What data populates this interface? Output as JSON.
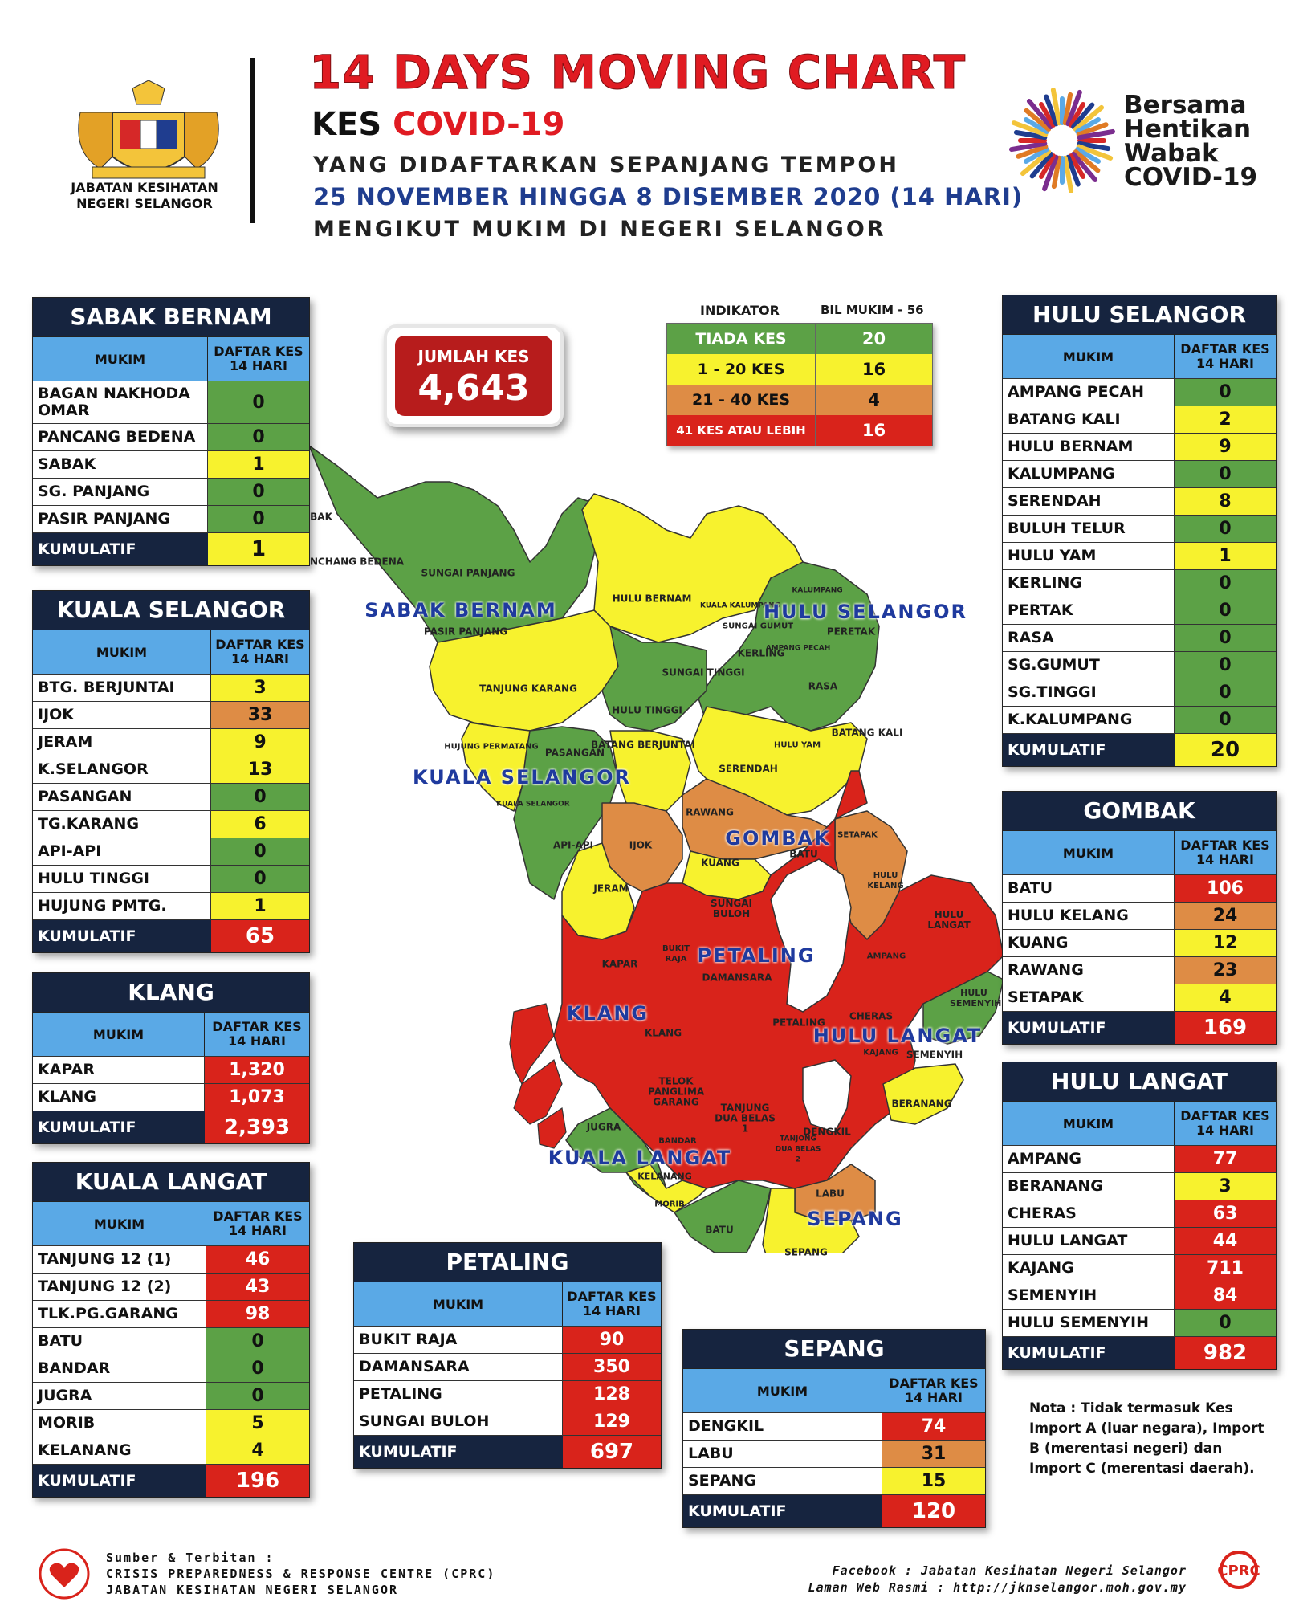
{
  "header": {
    "agency_line1": "JABATAN KESIHATAN",
    "agency_line2": "NEGERI SELANGOR",
    "title": "14 DAYS MOVING CHART",
    "kes_prefix": "KES",
    "kes_highlight": "COVID-19",
    "subtitle1": "YANG DIDAFTARKAN SEPANJANG TEMPOH",
    "subtitle2": "25 NOVEMBER HINGGA 8 DISEMBER 2020 (14 HARI)",
    "subtitle3": "MENGIKUT MUKIM DI NEGERI SELANGOR",
    "campaign": [
      "Bersama",
      "Hentikan",
      "Wabak",
      "COVID-19"
    ]
  },
  "colors": {
    "green": "#5ca146",
    "yellow": "#f7f22e",
    "orange": "#de8c45",
    "red": "#d9231b",
    "navy": "#16243f",
    "header_blue": "#5aa9e6"
  },
  "total": {
    "label": "JUMLAH KES",
    "value": "4,643"
  },
  "legend": {
    "header_left": "INDIKATOR",
    "header_right": "BIL MUKIM - 56",
    "rows": [
      {
        "label": "TIADA KES",
        "count": "20",
        "color": "#5ca146",
        "text": "#ffffff"
      },
      {
        "label": "1 - 20 KES",
        "count": "16",
        "color": "#f7f22e",
        "text": "#111111"
      },
      {
        "label": "21 - 40 KES",
        "count": "4",
        "color": "#de8c45",
        "text": "#111111"
      },
      {
        "label": "41 KES ATAU LEBIH",
        "count": "16",
        "color": "#d9231b",
        "text": "#ffffff"
      }
    ]
  },
  "table_labels": {
    "mukim": "MUKIM",
    "daftar_kes": "DAFTAR KES 14 HARI",
    "kumulatif": "KUMULATIF"
  },
  "districts": {
    "sabak_bernam": {
      "name": "SABAK BERNAM",
      "rows": [
        {
          "mukim": "BAGAN NAKHODA OMAR",
          "kes": "0",
          "level": "green"
        },
        {
          "mukim": "PANCANG BEDENA",
          "kes": "0",
          "level": "green"
        },
        {
          "mukim": "SABAK",
          "kes": "1",
          "level": "yellow"
        },
        {
          "mukim": "SG. PANJANG",
          "kes": "0",
          "level": "green"
        },
        {
          "mukim": "PASIR PANJANG",
          "kes": "0",
          "level": "green"
        }
      ],
      "cumulative": {
        "kes": "1",
        "level": "yellow"
      }
    },
    "kuala_selangor": {
      "name": "KUALA SELANGOR",
      "rows": [
        {
          "mukim": "BTG. BERJUNTAI",
          "kes": "3",
          "level": "yellow"
        },
        {
          "mukim": "IJOK",
          "kes": "33",
          "level": "orange"
        },
        {
          "mukim": "JERAM",
          "kes": "9",
          "level": "yellow"
        },
        {
          "mukim": "K.SELANGOR",
          "kes": "13",
          "level": "yellow"
        },
        {
          "mukim": "PASANGAN",
          "kes": "0",
          "level": "green"
        },
        {
          "mukim": "TG.KARANG",
          "kes": "6",
          "level": "yellow"
        },
        {
          "mukim": "API-API",
          "kes": "0",
          "level": "green"
        },
        {
          "mukim": "HULU TINGGI",
          "kes": "0",
          "level": "green"
        },
        {
          "mukim": "HUJUNG PMTG.",
          "kes": "1",
          "level": "yellow"
        }
      ],
      "cumulative": {
        "kes": "65",
        "level": "red"
      }
    },
    "klang": {
      "name": "KLANG",
      "rows": [
        {
          "mukim": "KAPAR",
          "kes": "1,320",
          "level": "red"
        },
        {
          "mukim": "KLANG",
          "kes": "1,073",
          "level": "red"
        }
      ],
      "cumulative": {
        "kes": "2,393",
        "level": "red"
      }
    },
    "kuala_langat": {
      "name": "KUALA LANGAT",
      "rows": [
        {
          "mukim": "TANJUNG 12 (1)",
          "kes": "46",
          "level": "red"
        },
        {
          "mukim": "TANJUNG 12 (2)",
          "kes": "43",
          "level": "red"
        },
        {
          "mukim": "TLK.PG.GARANG",
          "kes": "98",
          "level": "red"
        },
        {
          "mukim": "BATU",
          "kes": "0",
          "level": "green"
        },
        {
          "mukim": "BANDAR",
          "kes": "0",
          "level": "green"
        },
        {
          "mukim": "JUGRA",
          "kes": "0",
          "level": "green"
        },
        {
          "mukim": "MORIB",
          "kes": "5",
          "level": "yellow"
        },
        {
          "mukim": "KELANANG",
          "kes": "4",
          "level": "yellow"
        }
      ],
      "cumulative": {
        "kes": "196",
        "level": "red"
      }
    },
    "petaling": {
      "name": "PETALING",
      "rows": [
        {
          "mukim": "BUKIT RAJA",
          "kes": "90",
          "level": "red"
        },
        {
          "mukim": "DAMANSARA",
          "kes": "350",
          "level": "red"
        },
        {
          "mukim": "PETALING",
          "kes": "128",
          "level": "red"
        },
        {
          "mukim": "SUNGAI BULOH",
          "kes": "129",
          "level": "red"
        }
      ],
      "cumulative": {
        "kes": "697",
        "level": "red"
      }
    },
    "sepang": {
      "name": "SEPANG",
      "rows": [
        {
          "mukim": "DENGKIL",
          "kes": "74",
          "level": "red"
        },
        {
          "mukim": "LABU",
          "kes": "31",
          "level": "orange"
        },
        {
          "mukim": "SEPANG",
          "kes": "15",
          "level": "yellow"
        }
      ],
      "cumulative": {
        "kes": "120",
        "level": "red"
      }
    },
    "hulu_selangor": {
      "name": "HULU SELANGOR",
      "rows": [
        {
          "mukim": "AMPANG PECAH",
          "kes": "0",
          "level": "green"
        },
        {
          "mukim": "BATANG KALI",
          "kes": "2",
          "level": "yellow"
        },
        {
          "mukim": "HULU BERNAM",
          "kes": "9",
          "level": "yellow"
        },
        {
          "mukim": "KALUMPANG",
          "kes": "0",
          "level": "green"
        },
        {
          "mukim": "SERENDAH",
          "kes": "8",
          "level": "yellow"
        },
        {
          "mukim": "BULUH TELUR",
          "kes": "0",
          "level": "green"
        },
        {
          "mukim": "HULU YAM",
          "kes": "1",
          "level": "yellow"
        },
        {
          "mukim": "KERLING",
          "kes": "0",
          "level": "green"
        },
        {
          "mukim": "PERTAK",
          "kes": "0",
          "level": "green"
        },
        {
          "mukim": "RASA",
          "kes": "0",
          "level": "green"
        },
        {
          "mukim": "SG.GUMUT",
          "kes": "0",
          "level": "green"
        },
        {
          "mukim": "SG.TINGGI",
          "kes": "0",
          "level": "green"
        },
        {
          "mukim": "K.KALUMPANG",
          "kes": "0",
          "level": "green"
        }
      ],
      "cumulative": {
        "kes": "20",
        "level": "yellow"
      }
    },
    "gombak": {
      "name": "GOMBAK",
      "rows": [
        {
          "mukim": "BATU",
          "kes": "106",
          "level": "red"
        },
        {
          "mukim": "HULU KELANG",
          "kes": "24",
          "level": "orange"
        },
        {
          "mukim": "KUANG",
          "kes": "12",
          "level": "yellow"
        },
        {
          "mukim": "RAWANG",
          "kes": "23",
          "level": "orange"
        },
        {
          "mukim": "SETAPAK",
          "kes": "4",
          "level": "yellow"
        }
      ],
      "cumulative": {
        "kes": "169",
        "level": "red"
      }
    },
    "hulu_langat": {
      "name": "HULU LANGAT",
      "rows": [
        {
          "mukim": "AMPANG",
          "kes": "77",
          "level": "red"
        },
        {
          "mukim": "BERANANG",
          "kes": "3",
          "level": "yellow"
        },
        {
          "mukim": "CHERAS",
          "kes": "63",
          "level": "red"
        },
        {
          "mukim": "HULU LANGAT",
          "kes": "44",
          "level": "red"
        },
        {
          "mukim": "KAJANG",
          "kes": "711",
          "level": "red"
        },
        {
          "mukim": "SEMENYIH",
          "kes": "84",
          "level": "red"
        },
        {
          "mukim": "HULU SEMENYIH",
          "kes": "0",
          "level": "green"
        }
      ],
      "cumulative": {
        "kes": "982",
        "level": "red"
      }
    }
  },
  "map": {
    "district_labels": [
      "SABAK BERNAM",
      "HULU SELANGOR",
      "KUALA SELANGOR",
      "GOMBAK",
      "PETALING",
      "KLANG",
      "HULU LANGAT",
      "KUALA LANGAT",
      "SEPANG"
    ],
    "mukim_labels": [
      "BAK",
      "PANCHANG BEDENA",
      "SUNGAI PANJANG",
      "PASIR PANJANG",
      "HULU BERNAM",
      "KUALA KALUMPANG",
      "KALUMPANG",
      "SUNGAI GUMUT",
      "PERETAK",
      "KERLING",
      "AMPANG PECAH",
      "SUNGAI TINGGI",
      "RASA",
      "TANJUNG KARANG",
      "HULU TINGGI",
      "BATANG KALI",
      "HULU YAM",
      "HUJUNG PERMATANG",
      "PASANGAN",
      "BATANG BERJUNTAI",
      "SERENDAH",
      "KUALA SELANGOR",
      "RAWANG",
      "SETAPAK",
      "API-API",
      "IJOK",
      "KUANG",
      "BATU",
      "HULU KELANG",
      "JERAM",
      "SUNGAI BULOH",
      "HULU LANGAT",
      "BUKIT RAJA",
      "AMPANG",
      "KAPAR",
      "DAMANSARA",
      "HULU SEMENYIH",
      "CHERAS",
      "PETALING",
      "KLANG",
      "KAJANG",
      "SEMENYIH",
      "TELOK PANGLIMA GARANG",
      "TANJUNG DUA BELAS 1",
      "BERANANG",
      "JUGRA",
      "DENGKIL",
      "BANDAR",
      "TANJONG DUA BELAS 2",
      "KELANANG",
      "LABU",
      "MORIB",
      "BATU",
      "SEPANG"
    ]
  },
  "nota": [
    "Nota : Tidak termasuk Kes",
    "Import A (luar negara), Import",
    "B (merentasi negeri) dan",
    "Import C (merentasi daerah)."
  ],
  "footer": {
    "left": [
      "Sumber & Terbitan :",
      "CRISIS PREPAREDNESS & RESPONSE CENTRE (CPRC)",
      "JABATAN KESIHATAN NEGERI SELANGOR"
    ],
    "right": [
      "Facebook : Jabatan Kesihatan Negeri Selangor",
      "Laman Web Rasmi : http://jknselangor.moh.gov.my"
    ],
    "cprc_logo_text": "CPRC"
  }
}
